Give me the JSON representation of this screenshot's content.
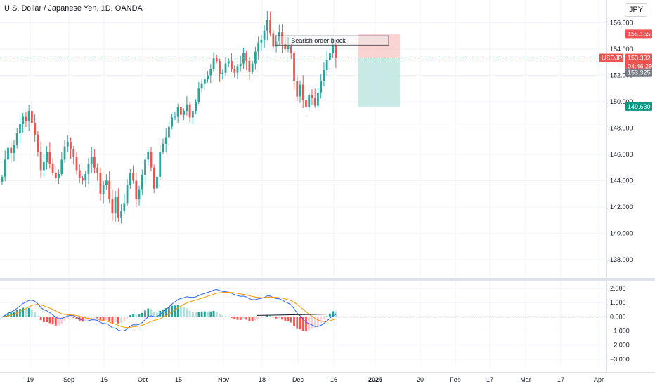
{
  "header": {
    "title": "U.S. Dollar / Japanese Yen, 1D, OANDA",
    "currency_button": "JPY"
  },
  "colors": {
    "up": "#26a69a",
    "down": "#ef5350",
    "macd_line": "#2962ff",
    "signal_line": "#ff9800",
    "grid": "#f0f3fa"
  },
  "chart_data": [
    {
      "type": "candlestick",
      "symbol": "USDJPY",
      "y_ticks": [
        "156.000",
        "154.000",
        "152.000",
        "150.000",
        "148.000",
        "146.000",
        "144.000",
        "142.000",
        "140.000",
        "138.000"
      ],
      "y_tick_values": [
        156,
        154,
        152,
        150,
        148,
        146,
        144,
        142,
        140,
        138
      ],
      "ylim": [
        137.3,
        157.2
      ],
      "x_ticks": [
        "19",
        "Sep",
        "16",
        "Oct",
        "15",
        "Nov",
        "18",
        "Dec",
        "16",
        "2025",
        "20",
        "Feb",
        "17",
        "Mar",
        "17",
        "Apr"
      ],
      "price_labels": [
        {
          "label": "155.155",
          "value": 155.155,
          "color": "#ef5350"
        },
        {
          "label": "USDJPY",
          "value": 153.332,
          "color": "#ef5350"
        },
        {
          "label": "153.332",
          "value": 153.332,
          "color": "#ef5350"
        },
        {
          "label": "04:46:29",
          "value": 152.7,
          "color": "#ef5350"
        },
        {
          "label": "153.325",
          "value": 152.2,
          "color": "#787b86"
        },
        {
          "label": "149.630",
          "value": 149.63,
          "color": "#089981"
        }
      ],
      "current_price": 153.332,
      "position": {
        "entry": 153.332,
        "stop": 155.155,
        "target": 149.63
      },
      "annotation": "Bearish order block",
      "order_block": [
        154.3,
        155.0
      ],
      "closes": [
        144.3,
        145.6,
        146.5,
        146.1,
        146.7,
        147.6,
        148.3,
        148.9,
        148.5,
        149.3,
        148.4,
        147.5,
        146.2,
        144.8,
        145.4,
        146.2,
        145.3,
        144.6,
        144.2,
        144.5,
        145.6,
        146.6,
        146.9,
        146.4,
        145.8,
        144.8,
        144.2,
        144.0,
        144.5,
        145.3,
        145.8,
        145.0,
        144.6,
        143.0,
        143.7,
        144.0,
        142.6,
        141.5,
        142.8,
        141.2,
        141.7,
        142.3,
        143.7,
        144.6,
        144.0,
        142.6,
        143.3,
        144.4,
        145.6,
        146.2,
        145.0,
        143.4,
        144.3,
        146.2,
        146.8,
        147.3,
        148.1,
        148.8,
        148.9,
        149.6,
        149.0,
        149.3,
        149.8,
        148.8,
        149.3,
        150.0,
        151.0,
        151.4,
        151.7,
        152.0,
        152.5,
        153.3,
        153.1,
        152.1,
        152.2,
        152.9,
        153.1,
        152.5,
        152.2,
        152.7,
        152.9,
        153.7,
        153.1,
        152.3,
        152.9,
        153.8,
        154.5,
        154.7,
        155.4,
        156.2,
        155.2,
        154.2,
        154.6,
        155.3,
        154.4,
        154.0,
        154.2,
        153.7,
        151.6,
        150.4,
        151.3,
        150.1,
        149.6,
        150.5,
        150.3,
        149.7,
        150.7,
        151.6,
        152.4,
        153.2,
        153.7,
        154.3,
        153.3
      ]
    },
    {
      "type": "macd",
      "y_ticks": [
        "2.000",
        "1.000",
        "0.000",
        "−1.000",
        "−2.000",
        "−3.000"
      ],
      "y_tick_values": [
        2,
        1,
        0,
        -1,
        -2,
        -3
      ],
      "ylim": [
        -3.5,
        2.4
      ]
    }
  ]
}
